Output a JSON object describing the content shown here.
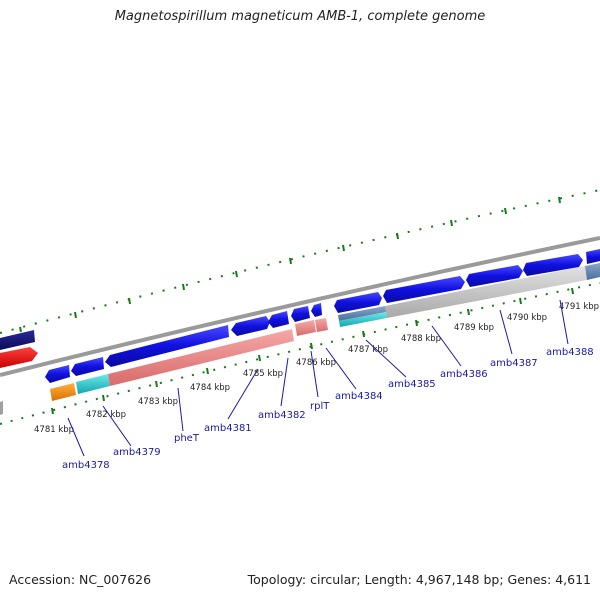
{
  "title": "Magnetospirillum magneticum AMB-1, complete genome",
  "footer": {
    "accession": "Accession: NC_007626",
    "summary": "Topology: circular; Length: 4,967,148 bp; Genes: 4,611"
  },
  "colors": {
    "forward_cds": "#1010e0",
    "reverse_cds": "#e88080",
    "grey_feature": "#bdbdbd",
    "trna": "#20c8c8",
    "rrna": "#f08c10",
    "backbone": "#8c8c8c",
    "ticks": "#1a7a1a",
    "label": "#1a1aa8"
  },
  "ticks": [
    {
      "label": "4781 kbp"
    },
    {
      "label": "4782 kbp"
    },
    {
      "label": "4783 kbp"
    },
    {
      "label": "4784 kbp"
    },
    {
      "label": "4785 kbp"
    },
    {
      "label": "4786 kbp"
    },
    {
      "label": "4787 kbp"
    },
    {
      "label": "4788 kbp"
    },
    {
      "label": "4789 kbp"
    },
    {
      "label": "4790 kbp"
    },
    {
      "label": "4791 kbp"
    }
  ],
  "genes": [
    {
      "name": "amb4378",
      "icon": "gene-feature-icon"
    },
    {
      "name": "amb4379",
      "icon": "gene-feature-icon"
    },
    {
      "name": "pheT",
      "icon": "gene-feature-icon"
    },
    {
      "name": "amb4381",
      "icon": "gene-feature-icon"
    },
    {
      "name": "amb4382",
      "icon": "gene-feature-icon"
    },
    {
      "name": "rplT",
      "icon": "gene-feature-icon"
    },
    {
      "name": "amb4384",
      "icon": "gene-feature-icon"
    },
    {
      "name": "amb4385",
      "icon": "gene-feature-icon"
    },
    {
      "name": "amb4386",
      "icon": "gene-feature-icon"
    },
    {
      "name": "amb4387",
      "icon": "gene-feature-icon"
    },
    {
      "name": "amb4388",
      "icon": "gene-feature-icon"
    }
  ]
}
